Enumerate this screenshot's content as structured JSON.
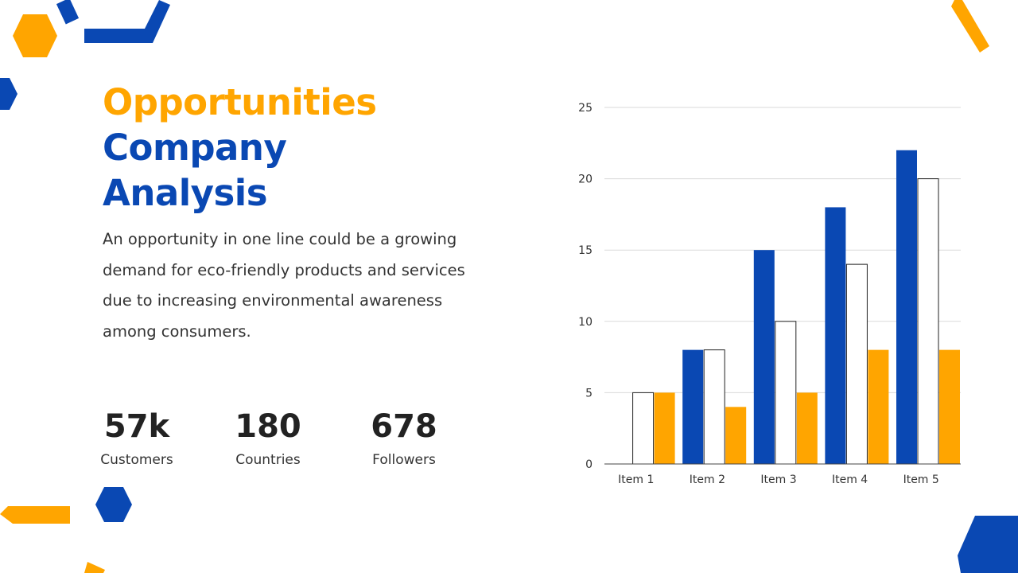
{
  "heading": {
    "line1": "Opportunities",
    "line2": "Company",
    "line3": "Analysis"
  },
  "body": "An opportunity in one line could be a growing demand for eco-friendly products and services due to increasing environmental awareness among consumers.",
  "stats": [
    {
      "value": "57k",
      "label": "Customers"
    },
    {
      "value": "180",
      "label": "Countries"
    },
    {
      "value": "678",
      "label": "Followers"
    }
  ],
  "colors": {
    "orange": "#FFA500",
    "blue": "#0A48B3",
    "text": "#333333"
  },
  "chart_data": {
    "type": "bar",
    "categories": [
      "Item 1",
      "Item 2",
      "Item 3",
      "Item 4",
      "Item 5"
    ],
    "series": [
      {
        "values": [
          0,
          8,
          15,
          18,
          22
        ],
        "color": "#0A48B3"
      },
      {
        "values": [
          5,
          8,
          10,
          14,
          20
        ],
        "color": "#FFFFFF"
      },
      {
        "values": [
          5,
          4,
          5,
          8,
          8
        ],
        "color": "#FFA500"
      }
    ],
    "yticks": [
      0,
      5,
      10,
      15,
      20,
      25
    ],
    "ylim": [
      0,
      25
    ],
    "grid": true,
    "legend": false
  }
}
